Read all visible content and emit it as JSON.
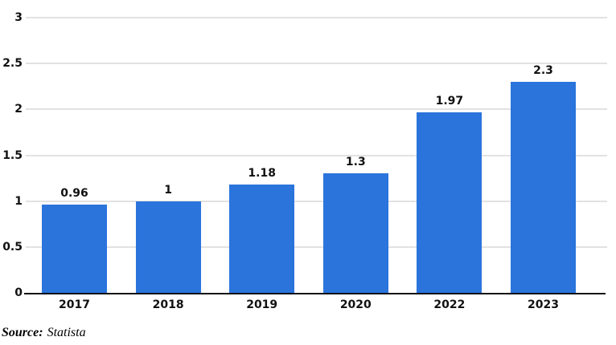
{
  "chart_data": {
    "type": "bar",
    "categories": [
      "2017",
      "2018",
      "2019",
      "2020",
      "2022",
      "2023"
    ],
    "values": [
      0.96,
      1,
      1.18,
      1.3,
      1.97,
      2.3
    ],
    "value_labels": [
      "0.96",
      "1",
      "1.18",
      "1.3",
      "1.97",
      "2.3"
    ],
    "title": "",
    "xlabel": "",
    "ylabel": "",
    "ylim": [
      0,
      3
    ],
    "yticks": [
      0,
      0.5,
      1,
      1.5,
      2,
      2.5,
      3
    ],
    "ytick_labels": [
      "0",
      "0.5",
      "1",
      "1.5",
      "2",
      "2.5",
      "3"
    ],
    "grid": true,
    "legend": "none",
    "bar_color": "#2a74dc"
  },
  "colors": {
    "bar": "#2a74dc",
    "gridline": "#e2e2e2",
    "axis": "#111111",
    "text": "#111111",
    "background": "#ffffff"
  },
  "footer": {
    "source_label": "Source:",
    "source_value": "Statista"
  }
}
